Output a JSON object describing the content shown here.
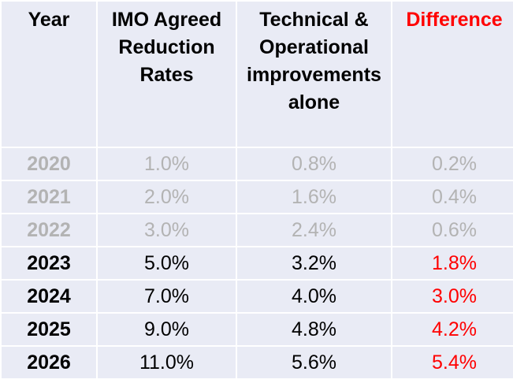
{
  "headers": {
    "year": "Year",
    "imo": "IMO Agreed Reduction Rates",
    "tech": "Technical & Operational improvements alone",
    "diff": "Difference"
  },
  "rows": [
    {
      "year": "2020",
      "imo": "1.0%",
      "tech": "0.8%",
      "diff": "0.2%",
      "style": "muted"
    },
    {
      "year": "2021",
      "imo": "2.0%",
      "tech": "1.6%",
      "diff": "0.4%",
      "style": "muted"
    },
    {
      "year": "2022",
      "imo": "3.0%",
      "tech": "2.4%",
      "diff": "0.6%",
      "style": "muted"
    },
    {
      "year": "2023",
      "imo": "5.0%",
      "tech": "3.2%",
      "diff": "1.8%",
      "style": "active"
    },
    {
      "year": "2024",
      "imo": "7.0%",
      "tech": "4.0%",
      "diff": "3.0%",
      "style": "active"
    },
    {
      "year": "2025",
      "imo": "9.0%",
      "tech": "4.8%",
      "diff": "4.2%",
      "style": "active"
    },
    {
      "year": "2026",
      "imo": "11.0%",
      "tech": "5.6%",
      "diff": "5.4%",
      "style": "active"
    }
  ],
  "colors": {
    "cell_bg": "#e9ebf5",
    "muted_text": "#b3b3b3",
    "accent_red": "#ff0000",
    "text": "#000000"
  }
}
